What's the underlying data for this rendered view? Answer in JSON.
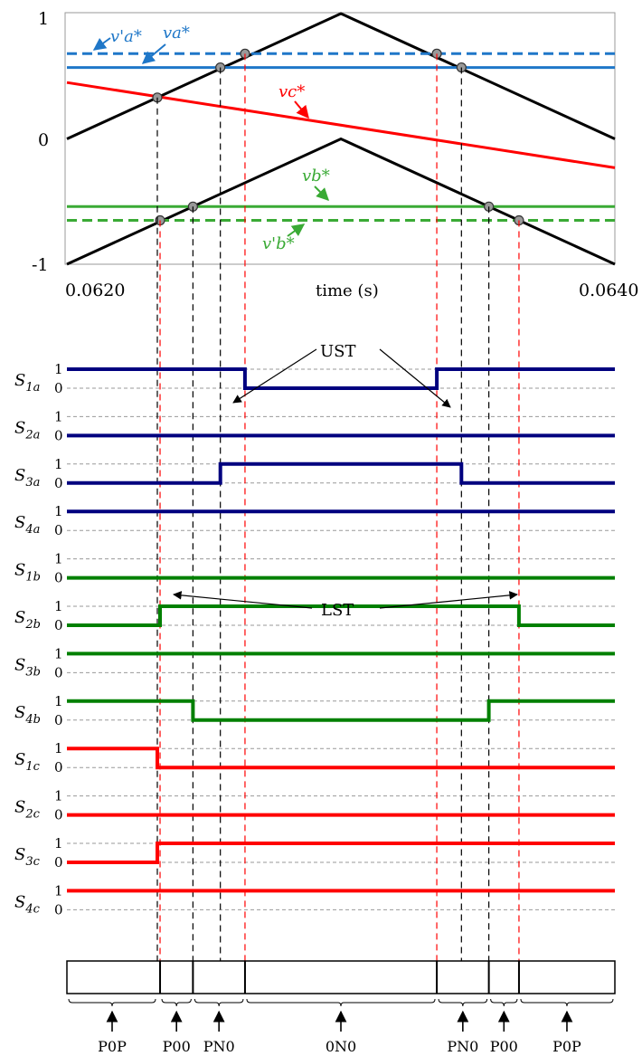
{
  "chart_data": [
    {
      "type": "line",
      "xlabel": "time (s)",
      "ylabel": "",
      "xlim": [
        0.062,
        0.064
      ],
      "ylim": [
        -1,
        1
      ],
      "x_tick_labels": [
        "0.0620",
        "0.0640"
      ],
      "y_tick_labels": [
        "1",
        "0",
        "-1"
      ],
      "series": [
        {
          "id": "carrier_upper",
          "color": "#000000",
          "style": "solid",
          "x": [
            0.062,
            0.063,
            0.064
          ],
          "y": [
            0.0,
            1.0,
            0.0
          ]
        },
        {
          "id": "carrier_lower",
          "color": "#000000",
          "style": "solid",
          "x": [
            0.062,
            0.063,
            0.064
          ],
          "y": [
            -1.0,
            0.0,
            -1.0
          ]
        },
        {
          "name": "v_a'*",
          "color": "#1f77c8",
          "style": "dashed",
          "x": [
            0.062,
            0.064
          ],
          "y": [
            0.68,
            0.68
          ]
        },
        {
          "name": "v_a*",
          "color": "#1f77c8",
          "style": "solid",
          "x": [
            0.062,
            0.064
          ],
          "y": [
            0.57,
            0.57
          ]
        },
        {
          "name": "v_c*",
          "color": "#ff0000",
          "style": "solid",
          "x": [
            0.062,
            0.064
          ],
          "y": [
            0.45,
            -0.23
          ]
        },
        {
          "name": "v_b*",
          "color": "#3aaa35",
          "style": "solid",
          "x": [
            0.062,
            0.064
          ],
          "y": [
            -0.54,
            -0.54
          ]
        },
        {
          "name": "v_b'*",
          "color": "#3aaa35",
          "style": "dashed",
          "x": [
            0.062,
            0.064
          ],
          "y": [
            -0.65,
            -0.65
          ]
        }
      ],
      "intersections": [
        {
          "x": 0.06233,
          "y": 0.33
        },
        {
          "x": 0.06234,
          "y": -0.65
        },
        {
          "x": 0.06246,
          "y": -0.54
        },
        {
          "x": 0.06256,
          "y": 0.57
        },
        {
          "x": 0.06265,
          "y": 0.68
        },
        {
          "x": 0.06335,
          "y": 0.68
        },
        {
          "x": 0.06344,
          "y": 0.57
        },
        {
          "x": 0.06354,
          "y": -0.54
        },
        {
          "x": 0.06365,
          "y": -0.65
        }
      ],
      "labels": {
        "va_prime": "v'a*",
        "va": "va*",
        "vc": "vc*",
        "vb": "vb*",
        "vb_prime": "v'b*"
      }
    },
    {
      "type": "line",
      "subtype": "switching-states",
      "time_range": [
        0.062,
        0.064
      ],
      "level_labels": [
        "1",
        "0"
      ],
      "annotations": {
        "upper": "UST",
        "lower": "LST"
      },
      "signals": [
        {
          "name": "S1a",
          "color": "#00007f",
          "initial": 1,
          "transitions": [
            [
              0.06265,
              0
            ],
            [
              0.06335,
              1
            ]
          ]
        },
        {
          "name": "S2a",
          "color": "#00007f",
          "initial": 0,
          "transitions": []
        },
        {
          "name": "S3a",
          "color": "#00007f",
          "initial": 0,
          "transitions": [
            [
              0.06256,
              1
            ],
            [
              0.06344,
              0
            ]
          ]
        },
        {
          "name": "S4a",
          "color": "#00007f",
          "initial": 1,
          "transitions": []
        },
        {
          "name": "S1b",
          "color": "#008000",
          "initial": 0,
          "transitions": []
        },
        {
          "name": "S2b",
          "color": "#008000",
          "initial": 0,
          "transitions": [
            [
              0.06234,
              1
            ],
            [
              0.06365,
              0
            ]
          ]
        },
        {
          "name": "S3b",
          "color": "#008000",
          "initial": 1,
          "transitions": []
        },
        {
          "name": "S4b",
          "color": "#008000",
          "initial": 1,
          "transitions": [
            [
              0.06246,
              0
            ],
            [
              0.06354,
              1
            ]
          ]
        },
        {
          "name": "S1c",
          "color": "#ff0000",
          "initial": 1,
          "transitions": [
            [
              0.06233,
              0
            ]
          ]
        },
        {
          "name": "S2c",
          "color": "#ff0000",
          "initial": 0,
          "transitions": []
        },
        {
          "name": "S3c",
          "color": "#ff0000",
          "initial": 0,
          "transitions": [
            [
              0.06233,
              1
            ]
          ]
        },
        {
          "name": "S4c",
          "color": "#ff0000",
          "initial": 1,
          "transitions": []
        }
      ],
      "states": [
        {
          "label": "P0P",
          "start": 0.062,
          "end": 0.06233
        },
        {
          "label": "P00",
          "start": 0.06234,
          "end": 0.06246
        },
        {
          "label": "PN0",
          "start": 0.06246,
          "end": 0.06265
        },
        {
          "label": "0N0",
          "start": 0.06265,
          "end": 0.06335
        },
        {
          "label": "PN0",
          "start": 0.06335,
          "end": 0.06354
        },
        {
          "label": "P00",
          "start": 0.06354,
          "end": 0.06365
        },
        {
          "label": "P0P",
          "start": 0.06365,
          "end": 0.064
        }
      ]
    }
  ]
}
